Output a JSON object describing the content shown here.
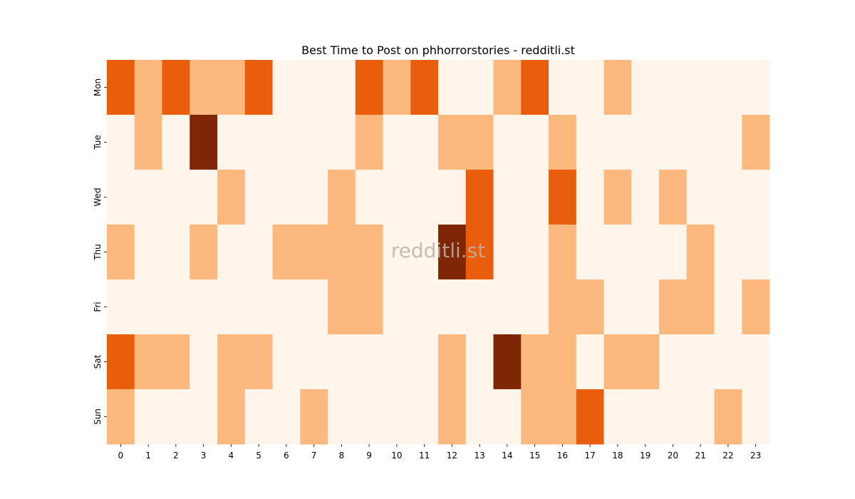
{
  "chart_data": {
    "type": "heatmap",
    "title": "Best Time to Post on phhorrorstories - redditli.st",
    "xlabel": "",
    "ylabel": "",
    "x_categories": [
      "0",
      "1",
      "2",
      "3",
      "4",
      "5",
      "6",
      "7",
      "8",
      "9",
      "10",
      "11",
      "12",
      "13",
      "14",
      "15",
      "16",
      "17",
      "18",
      "19",
      "20",
      "21",
      "22",
      "23"
    ],
    "y_categories": [
      "Mon",
      "Tue",
      "Wed",
      "Thu",
      "Fri",
      "Sat",
      "Sun"
    ],
    "values": [
      [
        2,
        1,
        2,
        1,
        1,
        2,
        0,
        0,
        0,
        2,
        1,
        2,
        0,
        0,
        1,
        2,
        0,
        0,
        1,
        0,
        0,
        0,
        0,
        0
      ],
      [
        0,
        1,
        0,
        3,
        0,
        0,
        0,
        0,
        0,
        1,
        0,
        0,
        1,
        1,
        0,
        0,
        1,
        0,
        0,
        0,
        0,
        0,
        0,
        1
      ],
      [
        0,
        0,
        0,
        0,
        1,
        0,
        0,
        0,
        1,
        0,
        0,
        0,
        0,
        2,
        0,
        0,
        2,
        0,
        1,
        0,
        1,
        0,
        0,
        0
      ],
      [
        1,
        0,
        0,
        1,
        0,
        0,
        1,
        1,
        1,
        1,
        0,
        0,
        3,
        2,
        0,
        0,
        1,
        0,
        0,
        0,
        0,
        1,
        0,
        0
      ],
      [
        0,
        0,
        0,
        0,
        0,
        0,
        0,
        0,
        1,
        1,
        0,
        0,
        0,
        0,
        0,
        0,
        1,
        1,
        0,
        0,
        1,
        1,
        0,
        1
      ],
      [
        2,
        1,
        1,
        0,
        1,
        1,
        0,
        0,
        0,
        0,
        0,
        0,
        1,
        0,
        3,
        1,
        1,
        0,
        1,
        1,
        0,
        0,
        0,
        0
      ],
      [
        1,
        0,
        0,
        0,
        1,
        0,
        0,
        1,
        0,
        0,
        0,
        0,
        1,
        0,
        0,
        1,
        1,
        2,
        0,
        0,
        0,
        0,
        1,
        0
      ]
    ],
    "value_range": [
      0,
      3
    ],
    "colormap": [
      "#fff5eb",
      "#fdb97d",
      "#e95e0d",
      "#7f2704"
    ],
    "colorbar": false,
    "grid": false,
    "watermark": "redditli.st"
  }
}
